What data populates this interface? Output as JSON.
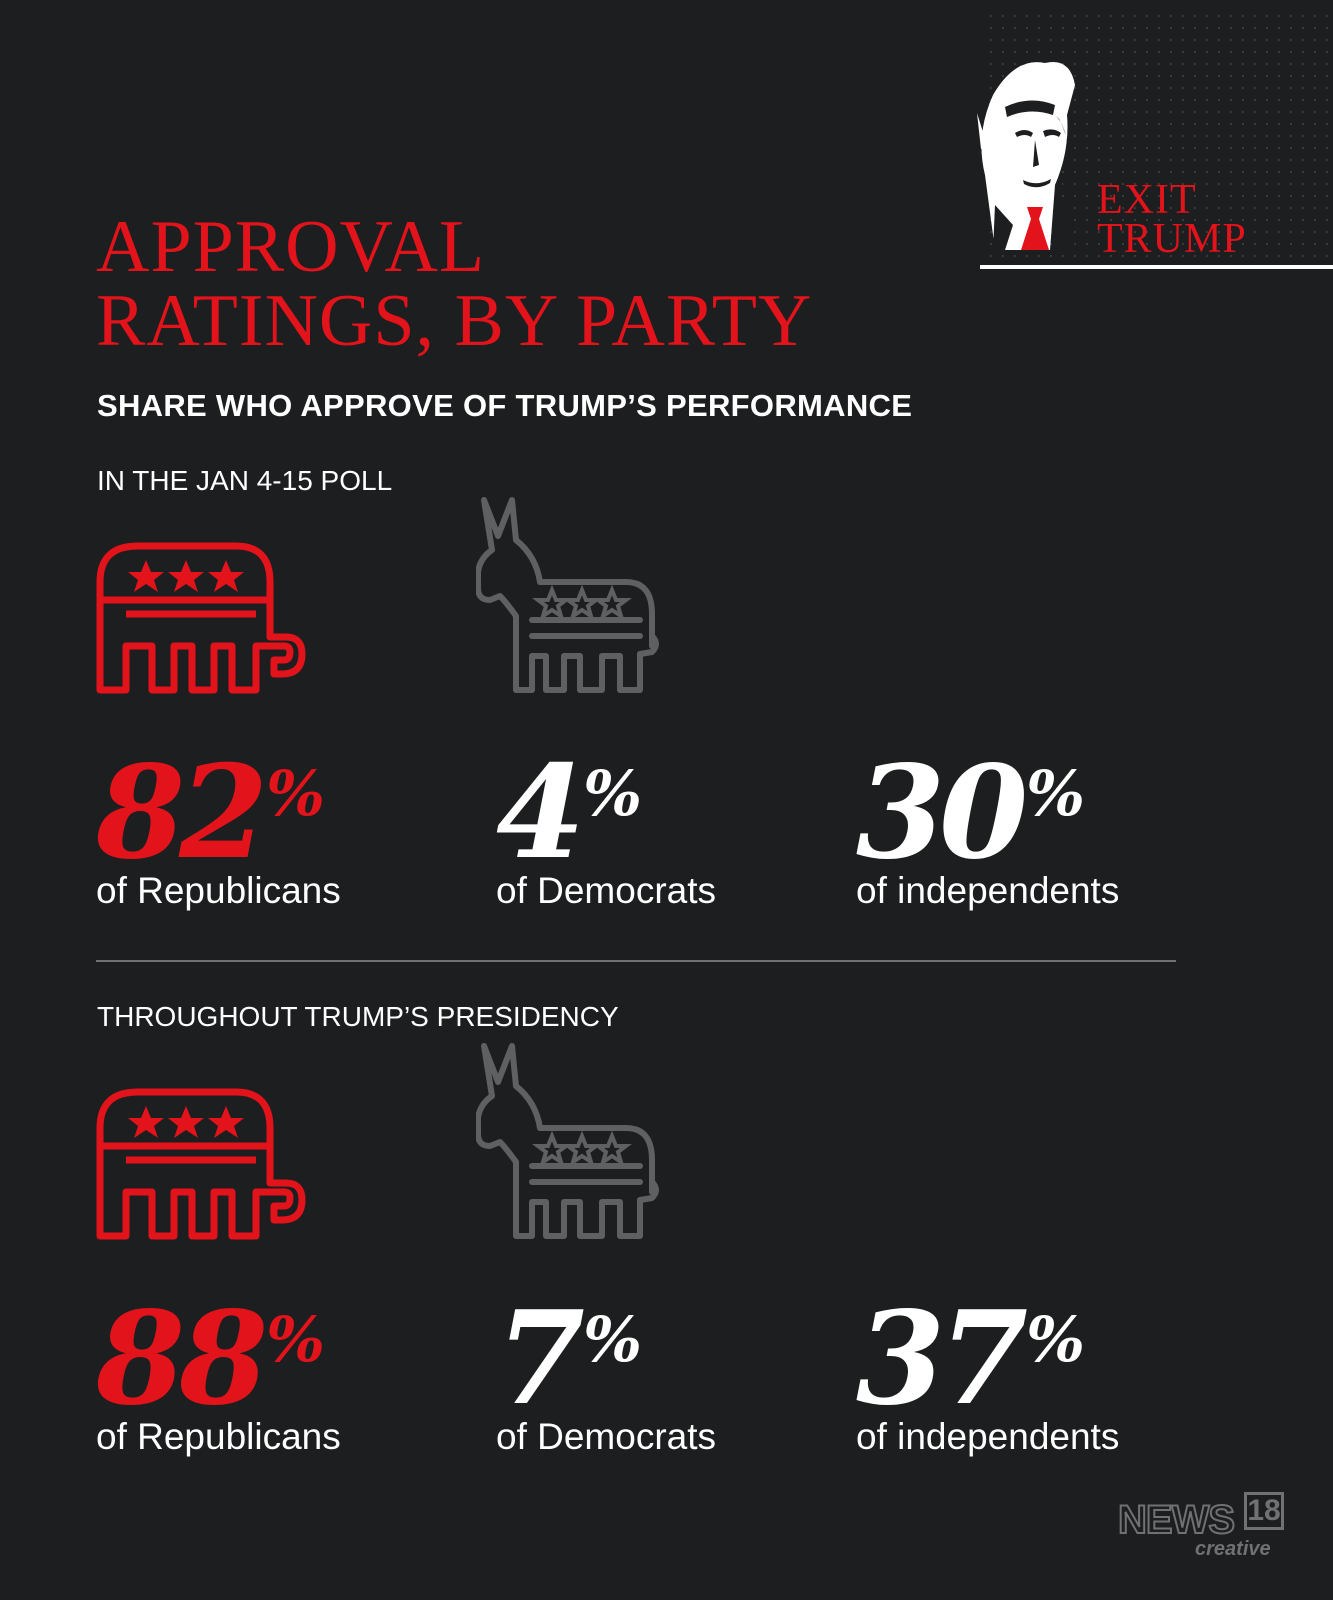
{
  "logo": {
    "line1": "EXIT",
    "line2": "TRUMP"
  },
  "title": {
    "line1": "APPROVAL",
    "line2": "RATINGS, BY PARTY"
  },
  "subtitle": "SHARE WHO APPROVE OF TRUMP’S PERFORMANCE",
  "sections": [
    {
      "label": "IN THE JAN 4-15 POLL",
      "stats": [
        {
          "value": "82",
          "unit": "%",
          "group": "of Republicans"
        },
        {
          "value": "4",
          "unit": "%",
          "group": "of Democrats"
        },
        {
          "value": "30",
          "unit": "%",
          "group": "of independents"
        }
      ]
    },
    {
      "label": "THROUGHOUT TRUMP’S PRESIDENCY",
      "stats": [
        {
          "value": "88",
          "unit": "%",
          "group": "of Republicans"
        },
        {
          "value": "7",
          "unit": "%",
          "group": "of Democrats"
        },
        {
          "value": "37",
          "unit": "%",
          "group": "of independents"
        }
      ]
    }
  ],
  "icons": {
    "republican": "elephant-icon",
    "democrat": "donkey-icon"
  },
  "colors": {
    "accent_red": "#e3131b",
    "background": "#1c1e1f",
    "icon_gray": "#5e6062",
    "text": "#ffffff"
  },
  "brand": {
    "name": "NEWS",
    "number": "18",
    "sub": "creative"
  }
}
